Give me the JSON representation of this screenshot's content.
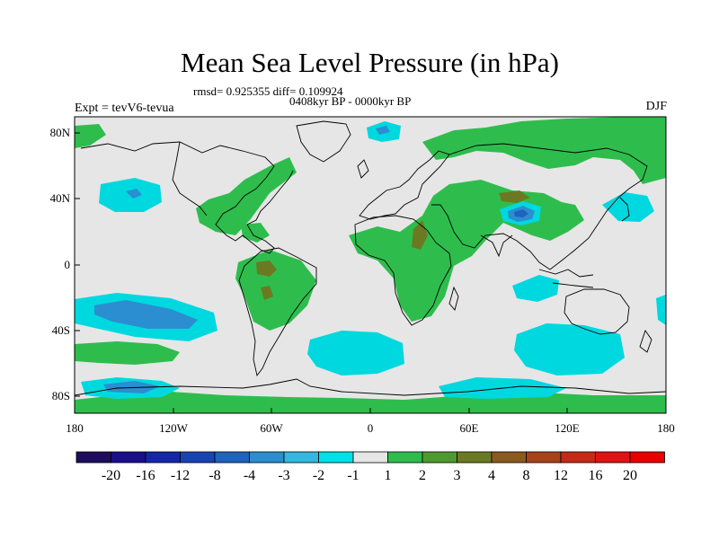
{
  "header": {
    "title": "Mean Sea Level Pressure (in hPa)",
    "subtitle": "rmsd= 0.925355 diff= 0.109924",
    "period": "0408kyr BP - 0000kyr BP",
    "expt": "Expt = tevV6-tevua",
    "season": "DJF"
  },
  "axes": {
    "lat_ticks": [
      "80N",
      "40N",
      "0",
      "40S",
      "80S"
    ],
    "lon_ticks": [
      "180",
      "120W",
      "60W",
      "0",
      "60E",
      "120E",
      "180"
    ]
  },
  "colorbar": {
    "labels": [
      "-20",
      "-16",
      "-12",
      "-8",
      "-4",
      "-3",
      "-2",
      "-1",
      "1",
      "2",
      "3",
      "4",
      "8",
      "12",
      "16",
      "20"
    ],
    "colors": [
      "#1e0c5c",
      "#1b0e8a",
      "#1427a8",
      "#1843b3",
      "#1e63bd",
      "#2a8ed0",
      "#33b8df",
      "#00e0e8",
      "#e6e6e6",
      "#2ebd4d",
      "#4f9a2e",
      "#6b7a22",
      "#8a5a1e",
      "#a8421a",
      "#c42a17",
      "#dc1414",
      "#e80000"
    ],
    "fill_colors": {
      "neutral": "#e6e6e6",
      "pos1": "#2ebd4d",
      "pos2": "#6b7a22",
      "neg1": "#00d8e0",
      "neg2": "#2a8ed0",
      "neg3": "#1e63bd"
    }
  }
}
